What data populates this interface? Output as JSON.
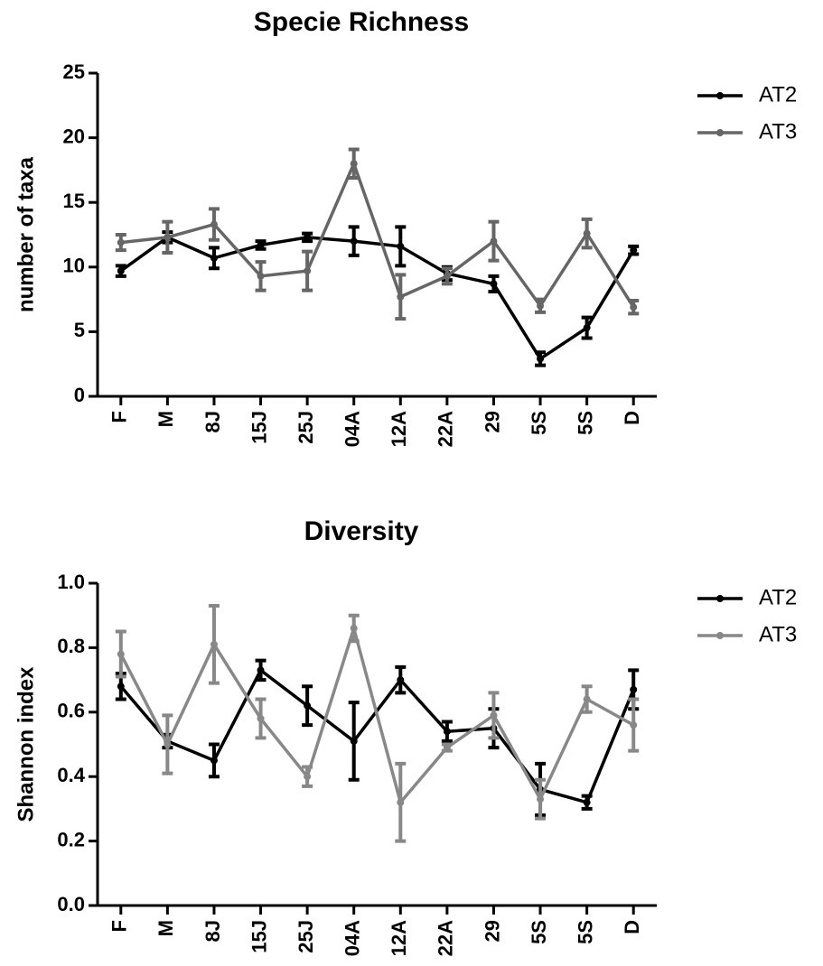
{
  "chart_data": [
    {
      "type": "line",
      "title": "Specie Richness",
      "y_label": "number of taxa",
      "categories": [
        "F",
        "M",
        "8J",
        "15J",
        "25J",
        "04A",
        "12A",
        "22A",
        "29",
        "5S",
        "5S",
        "D"
      ],
      "ylim": [
        0,
        25
      ],
      "yticks": [
        0,
        5,
        10,
        15,
        20,
        25
      ],
      "legend": "right",
      "series": [
        {
          "name": "AT2",
          "color": "#000000",
          "values": [
            9.7,
            12.3,
            10.7,
            11.7,
            12.3,
            12.0,
            11.6,
            9.5,
            8.7,
            2.9,
            5.3,
            11.3
          ],
          "errors": [
            0.4,
            0.4,
            0.8,
            0.3,
            0.3,
            1.1,
            1.5,
            0.5,
            0.6,
            0.5,
            0.8,
            0.3
          ]
        },
        {
          "name": "AT3",
          "color": "#666666",
          "values": [
            11.9,
            12.3,
            13.3,
            9.3,
            9.7,
            18.0,
            7.7,
            9.3,
            12.0,
            7.0,
            12.6,
            6.9
          ],
          "errors": [
            0.6,
            1.2,
            1.2,
            1.1,
            1.5,
            1.1,
            1.7,
            0.6,
            1.5,
            0.5,
            1.1,
            0.5
          ]
        }
      ]
    },
    {
      "type": "line",
      "title": "Diversity",
      "y_label": "Shannon index",
      "categories": [
        "F",
        "M",
        "8J",
        "15J",
        "25J",
        "04A",
        "12A",
        "22A",
        "29",
        "5S",
        "5S",
        "D"
      ],
      "ylim": [
        0,
        1
      ],
      "yticks": [
        {
          "value": 0,
          "label": "0.0"
        },
        0.2,
        0.4,
        0.6,
        0.8,
        {
          "value": 1,
          "label": "1.0"
        }
      ],
      "legend": "right",
      "series": [
        {
          "name": "AT2",
          "color": "#000000",
          "values": [
            0.68,
            0.51,
            0.45,
            0.73,
            0.62,
            0.51,
            0.7,
            0.54,
            0.55,
            0.36,
            0.32,
            0.67
          ],
          "errors": [
            0.04,
            0.02,
            0.05,
            0.03,
            0.06,
            0.12,
            0.04,
            0.03,
            0.06,
            0.08,
            0.02,
            0.06
          ]
        },
        {
          "name": "AT3",
          "color": "#888888",
          "values": [
            0.78,
            0.5,
            0.81,
            0.58,
            0.4,
            0.86,
            0.32,
            0.49,
            0.59,
            0.33,
            0.64,
            0.56
          ],
          "errors": [
            0.07,
            0.09,
            0.12,
            0.06,
            0.03,
            0.04,
            0.12,
            0.01,
            0.07,
            0.06,
            0.04,
            0.08
          ]
        }
      ]
    }
  ]
}
